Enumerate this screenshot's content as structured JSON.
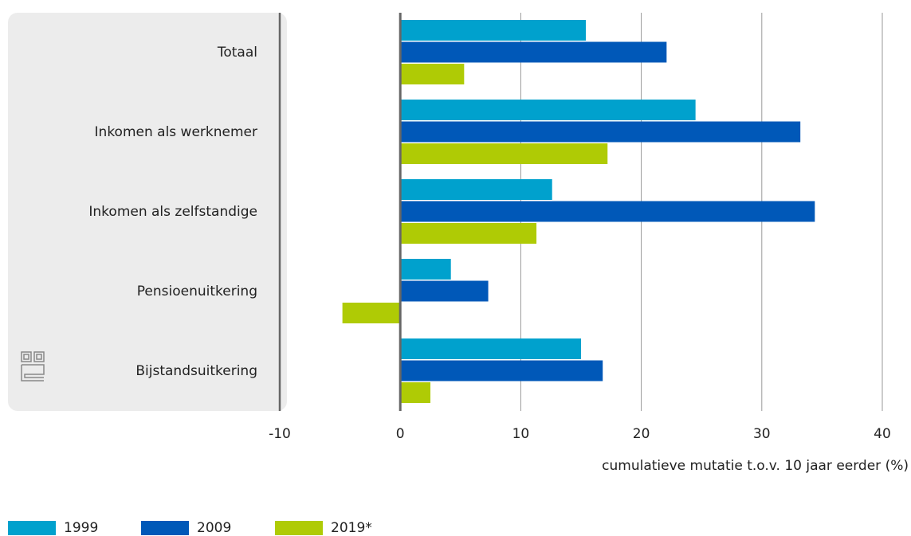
{
  "chart_data": {
    "type": "bar",
    "orientation": "horizontal",
    "categories": [
      "Totaal",
      "Inkomen als werknemer",
      "Inkomen als zelfstandige",
      "Pensioenuitkering",
      "Bijstandsuitkering"
    ],
    "series": [
      {
        "name": "1999",
        "color": "#00a1cd",
        "values": [
          15.4,
          24.5,
          12.6,
          4.2,
          15.0
        ]
      },
      {
        "name": "2009",
        "color": "#0058b8",
        "values": [
          22.1,
          33.2,
          34.4,
          7.3,
          16.8
        ]
      },
      {
        "name": "2019*",
        "color": "#afcb05",
        "values": [
          5.3,
          17.2,
          11.3,
          -4.8,
          2.5
        ]
      }
    ],
    "xlabel": "cumulatieve mutatie t.o.v. 10 jaar eerder (%)",
    "xlim": [
      -10,
      40
    ],
    "xticks": [
      -10,
      0,
      10,
      20,
      30,
      40
    ],
    "grid": true,
    "legend": "bottom-left"
  }
}
